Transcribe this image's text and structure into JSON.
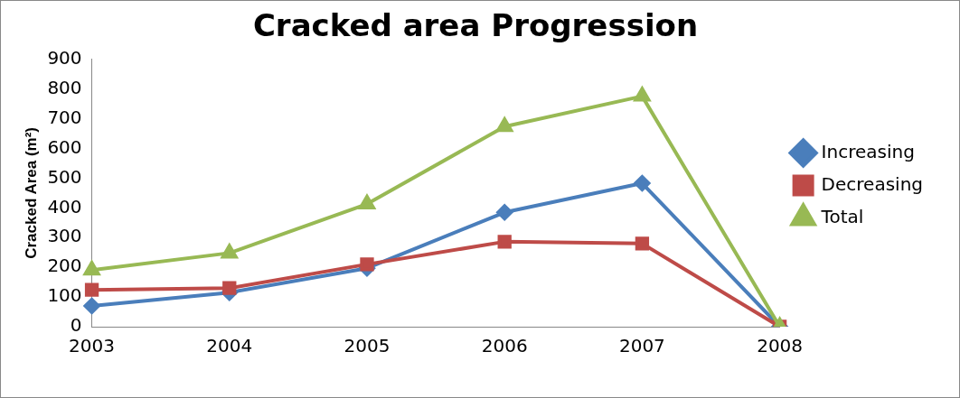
{
  "chart_data": {
    "type": "line",
    "title": "Cracked area Progression",
    "ylabel": "Cracked Area (m²)",
    "categories": [
      "2003",
      "2004",
      "2005",
      "2006",
      "2007",
      "2008"
    ],
    "series": [
      {
        "name": "Increasing",
        "color": "#4a7ebb",
        "marker": "diamond",
        "values": [
          70,
          115,
          197,
          385,
          483,
          0
        ]
      },
      {
        "name": "Decreasing",
        "color": "#be4b48",
        "marker": "square",
        "values": [
          124,
          130,
          210,
          286,
          280,
          0
        ]
      },
      {
        "name": "Total",
        "color": "#98b954",
        "marker": "triangle",
        "values": [
          191,
          248,
          413,
          674,
          776,
          0
        ]
      }
    ],
    "ylim": [
      0,
      900
    ],
    "yticks": [
      0,
      100,
      200,
      300,
      400,
      500,
      600,
      700,
      800,
      900
    ],
    "grid": false,
    "legend": "right"
  }
}
